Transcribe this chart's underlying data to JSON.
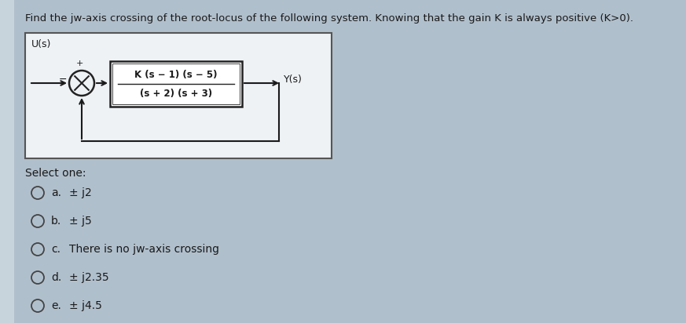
{
  "title": "Find the jw-axis crossing of the root-locus of the following system. Knowing that the gain K is always positive (K>0).",
  "title_fontsize": 9.5,
  "bg_color": "#b0bfcc",
  "panel_bg": "#dde6ed",
  "outer_box_bg": "#e8eef2",
  "tf_box_bg": "#ffffff",
  "block_label_num": "K (s − 1) (s − 5)",
  "block_label_den": "(s + 2) (s + 3)",
  "input_label": "U(s)",
  "output_label": "Y(s)",
  "select_one": "Select one:",
  "options": [
    {
      "letter": "a.",
      "text": "± j2"
    },
    {
      "letter": "b.",
      "text": "± j5"
    },
    {
      "letter": "c.",
      "text": "There is no jw-axis crossing"
    },
    {
      "letter": "d.",
      "text": "± j2.35"
    },
    {
      "letter": "e.",
      "text": "± j4.5"
    }
  ],
  "text_color": "#1a1a1a",
  "circle_color": "#222222",
  "box_color": "#222222",
  "arrow_color": "#1a1a1a"
}
